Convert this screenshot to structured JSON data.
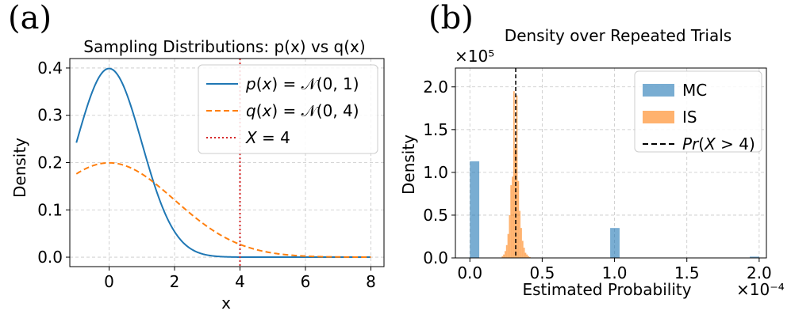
{
  "panels": {
    "a": {
      "label": "(a)"
    },
    "b": {
      "label": "(b)"
    }
  },
  "chart_data": [
    {
      "type": "line",
      "title": "Sampling Distributions: p(x) vs q(x)",
      "xlabel": "x",
      "ylabel": "Density",
      "xlim": [
        -1.2,
        8.4
      ],
      "ylim": [
        -0.02,
        0.42
      ],
      "xticks": [
        0,
        2,
        4,
        6,
        8
      ],
      "yticks": [
        0.0,
        0.1,
        0.2,
        0.3,
        0.4
      ],
      "xtick_labels": [
        "0",
        "2",
        "4",
        "6",
        "8"
      ],
      "ytick_labels": [
        "0.0",
        "0.1",
        "0.2",
        "0.3",
        "0.4"
      ],
      "grid": true,
      "legend_position": "upper-right",
      "series": [
        {
          "name": "p(x) = N(0, 1)",
          "legend_html": "<tspan class='math'>p</tspan>(<tspan class='math'>x</tspan>) = 𝒩(0, 1)",
          "distribution": {
            "mean": 0,
            "variance": 1
          },
          "x_range": [
            -1,
            8
          ],
          "color": "#1f77b4",
          "style": "solid"
        },
        {
          "name": "q(x) = N(0, 4)",
          "legend_html": "<tspan class='math'>q</tspan>(<tspan class='math'>x</tspan>) = 𝒩(0, 4)",
          "distribution": {
            "mean": 0,
            "variance": 4
          },
          "x_range": [
            -1,
            8
          ],
          "color": "#ff7f0e",
          "style": "dashed"
        }
      ],
      "vlines": [
        {
          "name": "X = 4",
          "legend_html": "<tspan class='math'>X</tspan> = 4",
          "x": 4,
          "color": "#d62728",
          "style": "dotted"
        }
      ]
    },
    {
      "type": "bar",
      "title": "Density over Repeated Trials",
      "xlabel": "Estimated Probability",
      "ylabel": "Density",
      "x_offset_label": "×10⁻⁴",
      "y_offset_label": "×10⁵",
      "xlim": [
        -0.1,
        2.05
      ],
      "ylim": [
        0,
        2.22
      ],
      "xticks": [
        0.0,
        0.5,
        1.0,
        1.5,
        2.0
      ],
      "yticks": [
        0.0,
        0.5,
        1.0,
        1.5,
        2.0
      ],
      "xtick_labels": [
        "0.0",
        "0.5",
        "1.0",
        "1.5",
        "2.0"
      ],
      "ytick_labels": [
        "0.0",
        "0.5",
        "1.0",
        "1.5",
        "2.0"
      ],
      "grid": true,
      "legend_position": "upper-right",
      "series": [
        {
          "name": "MC",
          "legend_html": "MC",
          "color": "#1f77b4",
          "bins": [
            {
              "x0": 0.0,
              "x1": 0.065,
              "value": 1.13
            },
            {
              "x0": 0.97,
              "x1": 1.035,
              "value": 0.35
            },
            {
              "x0": 1.935,
              "x1": 2.0,
              "value": 0.015
            }
          ]
        },
        {
          "name": "IS",
          "legend_html": "IS",
          "color": "#ff7f0e",
          "bins": [
            {
              "x0": 0.22,
              "x1": 0.23,
              "value": 0.02
            },
            {
              "x0": 0.23,
              "x1": 0.24,
              "value": 0.04
            },
            {
              "x0": 0.24,
              "x1": 0.25,
              "value": 0.08
            },
            {
              "x0": 0.25,
              "x1": 0.26,
              "value": 0.15
            },
            {
              "x0": 0.26,
              "x1": 0.27,
              "value": 0.28
            },
            {
              "x0": 0.27,
              "x1": 0.28,
              "value": 0.5
            },
            {
              "x0": 0.28,
              "x1": 0.29,
              "value": 0.85
            },
            {
              "x0": 0.29,
              "x1": 0.3,
              "value": 0.95
            },
            {
              "x0": 0.3,
              "x1": 0.31,
              "value": 1.95
            },
            {
              "x0": 0.31,
              "x1": 0.32,
              "value": 1.3
            },
            {
              "x0": 0.32,
              "x1": 0.33,
              "value": 1.9
            },
            {
              "x0": 0.33,
              "x1": 0.34,
              "value": 0.9
            },
            {
              "x0": 0.34,
              "x1": 0.35,
              "value": 0.55
            },
            {
              "x0": 0.35,
              "x1": 0.36,
              "value": 0.35
            },
            {
              "x0": 0.36,
              "x1": 0.37,
              "value": 0.2
            },
            {
              "x0": 0.37,
              "x1": 0.38,
              "value": 0.12
            },
            {
              "x0": 0.38,
              "x1": 0.39,
              "value": 0.06
            },
            {
              "x0": 0.39,
              "x1": 0.4,
              "value": 0.04
            },
            {
              "x0": 0.4,
              "x1": 0.41,
              "value": 0.02
            },
            {
              "x0": 0.41,
              "x1": 0.42,
              "value": 0.01
            }
          ]
        }
      ],
      "vlines": [
        {
          "name": "Pr(X > 4)",
          "legend_html": "<tspan class='math'>Pr</tspan>(<tspan class='math'>X</tspan> &gt; 4)",
          "x": 0.317,
          "color": "#000000",
          "style": "dashed"
        }
      ]
    }
  ]
}
